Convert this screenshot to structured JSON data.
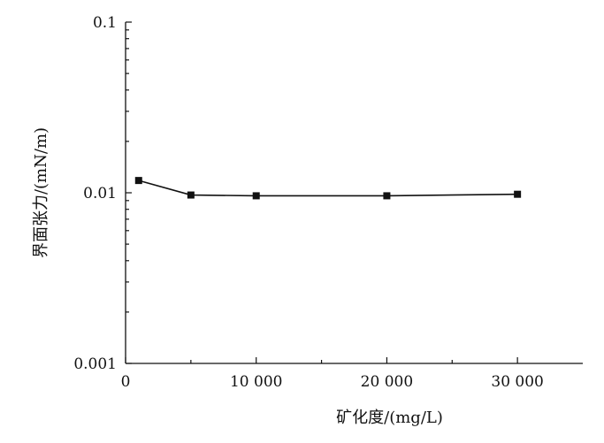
{
  "chart_data": {
    "type": "line",
    "title": "",
    "xlabel": "矿化度/(mg/L)",
    "ylabel": "界面张力/(mN/m)",
    "xlim": [
      0,
      35000
    ],
    "ylim": [
      0.001,
      0.1
    ],
    "yscale": "log",
    "x_ticks": [
      0,
      10000,
      20000,
      30000
    ],
    "x_tick_labels": [
      "0",
      "10 000",
      "20 000",
      "30 000"
    ],
    "y_ticks": [
      0.001,
      0.01,
      0.1
    ],
    "y_tick_labels": [
      "0.001",
      "0.01",
      "0.1"
    ],
    "grid": false,
    "legend": "none",
    "series": [
      {
        "marker": "square",
        "color": "#111111",
        "x": [
          1000,
          5000,
          10000,
          20000,
          30000
        ],
        "y": [
          0.0118,
          0.0097,
          0.0096,
          0.0096,
          0.0098
        ]
      }
    ]
  }
}
